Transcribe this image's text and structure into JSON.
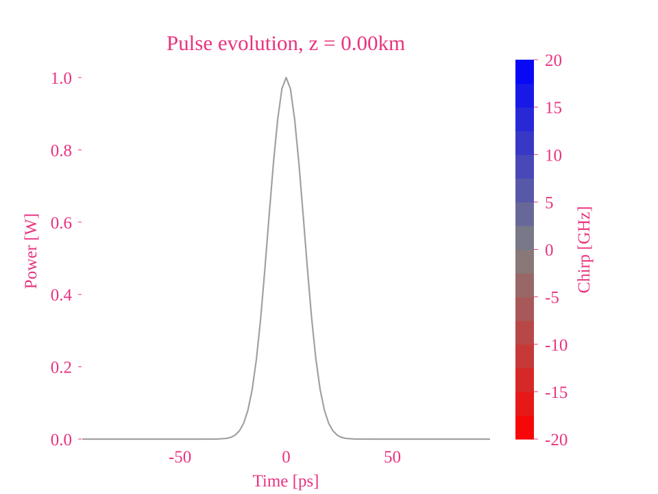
{
  "chart_data": {
    "type": "line",
    "title": "Pulse evolution, z = 0.00km",
    "xlabel": "Time [ps]",
    "ylabel": "Power [W]",
    "xlim": [
      -96,
      96
    ],
    "ylim": [
      0,
      1.0
    ],
    "x_ticks": [
      -50,
      0,
      50
    ],
    "x_tick_labels": [
      "-50",
      "0",
      "50"
    ],
    "y_ticks": [
      0.0,
      0.2,
      0.4,
      0.6,
      0.8,
      1.0
    ],
    "y_tick_labels": [
      "0.0",
      "0.2",
      "0.4",
      "0.6",
      "0.8",
      "1.0"
    ],
    "grid": false,
    "series": [
      {
        "color": "#a0a0a0",
        "x": [
          -96,
          -40,
          -32,
          -28,
          -26,
          -24,
          -22,
          -20,
          -18,
          -16,
          -14,
          -12,
          -10,
          -8,
          -6,
          -4,
          -2,
          0,
          2,
          4,
          6,
          8,
          10,
          12,
          14,
          16,
          18,
          20,
          22,
          24,
          26,
          28,
          32,
          40,
          96
        ],
        "y": [
          0.0,
          0.0,
          0.0003,
          0.002,
          0.005,
          0.011,
          0.023,
          0.044,
          0.08,
          0.137,
          0.221,
          0.334,
          0.472,
          0.62,
          0.763,
          0.884,
          0.969,
          1.0,
          0.969,
          0.884,
          0.763,
          0.62,
          0.472,
          0.334,
          0.221,
          0.137,
          0.08,
          0.044,
          0.023,
          0.011,
          0.005,
          0.002,
          0.0003,
          0.0,
          0.0
        ]
      }
    ],
    "colorbar": {
      "label": "Chirp [GHz]",
      "range": [
        -20,
        20
      ],
      "levels": 16,
      "color_low": "#ff0000",
      "color_mid": "#808080",
      "color_high": "#0000ff",
      "ticks": [
        -20,
        -15,
        -10,
        -5,
        0,
        5,
        10,
        15,
        20
      ],
      "tick_labels": [
        "-20",
        "-15",
        "-10",
        "-5",
        "0",
        "5",
        "10",
        "15",
        "20"
      ]
    },
    "text_color": "#e8337f"
  }
}
